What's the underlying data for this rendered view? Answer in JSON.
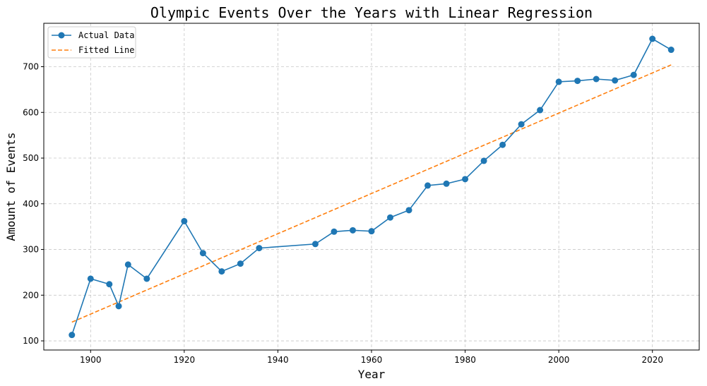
{
  "chart_data": {
    "type": "line",
    "title": "Olympic Events Over the Years with Linear Regression",
    "xlabel": "Year",
    "ylabel": "Amount of Events",
    "xlim": [
      1890,
      2030
    ],
    "ylim": [
      80,
      795
    ],
    "xticks": [
      1900,
      1920,
      1940,
      1960,
      1980,
      2000,
      2020
    ],
    "yticks": [
      100,
      200,
      300,
      400,
      500,
      600,
      700
    ],
    "grid": true,
    "legend_position": "top-left",
    "series": [
      {
        "name": "Actual Data",
        "style": "line-marker",
        "color": "#1f77b4",
        "x": [
          1896,
          1900,
          1904,
          1906,
          1908,
          1912,
          1920,
          1924,
          1928,
          1932,
          1936,
          1948,
          1952,
          1956,
          1960,
          1964,
          1968,
          1972,
          1976,
          1980,
          1984,
          1988,
          1992,
          1996,
          2000,
          2004,
          2008,
          2012,
          2016,
          2020,
          2024
        ],
        "y": [
          113,
          236,
          224,
          176,
          267,
          236,
          362,
          292,
          252,
          269,
          303,
          312,
          339,
          342,
          340,
          370,
          386,
          440,
          444,
          454,
          494,
          529,
          574,
          605,
          667,
          669,
          673,
          670,
          682,
          761,
          737
        ]
      },
      {
        "name": "Fitted Line",
        "style": "dashed",
        "color": "#ff7f0e",
        "x": [
          1896,
          2024
        ],
        "y": [
          141,
          704
        ]
      }
    ]
  }
}
